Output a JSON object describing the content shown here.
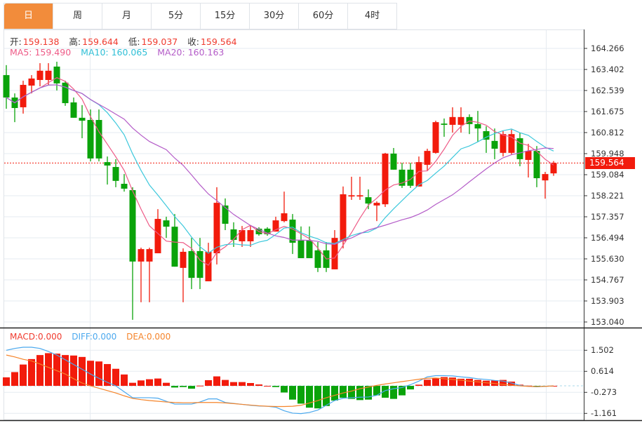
{
  "tabs": [
    {
      "label": "日",
      "active": true
    },
    {
      "label": "周"
    },
    {
      "label": "月"
    },
    {
      "label": "5分"
    },
    {
      "label": "15分"
    },
    {
      "label": "30分"
    },
    {
      "label": "60分"
    },
    {
      "label": "4时"
    }
  ],
  "ohlc_info": {
    "open_label": "开:",
    "open": "159.138",
    "high_label": "高:",
    "high": "159.644",
    "low_label": "低:",
    "low": "159.037",
    "close_label": "收:",
    "close": "159.564"
  },
  "ma_info": {
    "ma5": "MA5: 159.490",
    "ma10": "MA10: 160.065",
    "ma20": "MA20: 160.163"
  },
  "macd_info": {
    "macd": "MACD:0.000",
    "diff": "DIFF:0.000",
    "dea": "DEA:0.000"
  },
  "current_price": "159.564",
  "colors": {
    "up": "#f21b0c",
    "down": "#0aa30a",
    "ma5": "#ee5b87",
    "ma10": "#3cc8dc",
    "ma20": "#b45cc8",
    "diff": "#4aa8ee",
    "dea": "#f5842a",
    "active_tab": "#f28c3b"
  },
  "chart_data": [
    {
      "type": "candlestick",
      "price_axis_ticks": [
        "164.266",
        "163.402",
        "162.539",
        "161.675",
        "160.812",
        "159.948",
        "159.084",
        "158.221",
        "157.357",
        "156.494",
        "155.630",
        "154.767",
        "153.903",
        "153.040"
      ],
      "ylim": [
        153.04,
        164.266
      ],
      "grid": true,
      "ohlc": [
        [
          163.17,
          163.58,
          161.79,
          162.25
        ],
        [
          162.25,
          162.42,
          161.24,
          161.82
        ],
        [
          161.85,
          162.94,
          161.59,
          162.77
        ],
        [
          162.74,
          163.17,
          162.42,
          163.03
        ],
        [
          162.97,
          163.66,
          162.71,
          163.35
        ],
        [
          162.97,
          163.66,
          162.74,
          163.35
        ],
        [
          163.52,
          163.72,
          162.54,
          162.83
        ],
        [
          162.86,
          162.94,
          161.91,
          162.02
        ],
        [
          162.05,
          162.25,
          161.42,
          161.42
        ],
        [
          161.42,
          161.94,
          160.58,
          161.3
        ],
        [
          161.33,
          161.76,
          159.63,
          159.75
        ],
        [
          161.33,
          161.76,
          159.63,
          159.75
        ],
        [
          159.6,
          159.83,
          158.68,
          159.46
        ],
        [
          159.4,
          159.72,
          158.57,
          158.83
        ],
        [
          158.71,
          159.11,
          158.39,
          158.51
        ],
        [
          158.45,
          158.57,
          153.13,
          155.52
        ],
        [
          155.52,
          156.09,
          153.85,
          156.03
        ],
        [
          155.52,
          156.09,
          153.85,
          156.03
        ],
        [
          155.86,
          157.67,
          155.86,
          157.27
        ],
        [
          157.21,
          157.36,
          156.49,
          156.95
        ],
        [
          156.95,
          157.47,
          155.31,
          155.31
        ],
        [
          155.26,
          156.06,
          153.85,
          155.92
        ],
        [
          155.95,
          156.49,
          154.39,
          154.85
        ],
        [
          155.95,
          156.49,
          154.39,
          154.85
        ],
        [
          154.71,
          156.29,
          154.71,
          155.92
        ],
        [
          155.86,
          158.57,
          155.4,
          157.93
        ],
        [
          157.82,
          158.11,
          156.81,
          157.07
        ],
        [
          156.84,
          157.13,
          156.12,
          156.41
        ],
        [
          156.35,
          156.98,
          156.12,
          156.81
        ],
        [
          156.35,
          157.01,
          156.12,
          156.81
        ],
        [
          156.87,
          156.93,
          156.58,
          156.64
        ],
        [
          156.87,
          156.93,
          156.58,
          156.64
        ],
        [
          156.75,
          157.36,
          156.75,
          157.21
        ],
        [
          157.18,
          158.39,
          157.13,
          157.5
        ],
        [
          157.24,
          157.47,
          155.83,
          156.29
        ],
        [
          156.38,
          156.96,
          155.66,
          155.66
        ],
        [
          156.38,
          156.96,
          155.66,
          155.66
        ],
        [
          155.98,
          156.32,
          155.09,
          155.26
        ],
        [
          155.98,
          156.32,
          155.09,
          155.26
        ],
        [
          155.2,
          156.81,
          155.2,
          156.49
        ],
        [
          156.35,
          158.6,
          156.06,
          158.28
        ],
        [
          158.19,
          159.0,
          158.05,
          158.24
        ],
        [
          158.19,
          159.0,
          158.05,
          158.24
        ],
        [
          158.16,
          158.48,
          157.67,
          157.9
        ],
        [
          157.82,
          157.99,
          157.18,
          157.93
        ],
        [
          157.87,
          159.98,
          157.76,
          159.95
        ],
        [
          159.95,
          160.18,
          159.29,
          159.29
        ],
        [
          159.29,
          159.57,
          158.54,
          158.63
        ],
        [
          159.29,
          159.57,
          158.54,
          158.63
        ],
        [
          158.6,
          159.83,
          158.6,
          159.6
        ],
        [
          159.49,
          160.15,
          159.26,
          160.06
        ],
        [
          159.98,
          161.3,
          159.95,
          161.24
        ],
        [
          161.18,
          161.39,
          160.64,
          161.13
        ],
        [
          161.13,
          161.85,
          160.81,
          161.45
        ],
        [
          161.13,
          161.85,
          160.81,
          161.45
        ],
        [
          161.45,
          161.56,
          160.75,
          161.16
        ],
        [
          161.16,
          161.7,
          160.44,
          160.98
        ],
        [
          160.87,
          161.07,
          159.98,
          160.52
        ],
        [
          160.47,
          160.98,
          159.72,
          160.15
        ],
        [
          159.98,
          160.87,
          159.83,
          160.75
        ],
        [
          159.98,
          160.93,
          159.92,
          160.75
        ],
        [
          160.58,
          160.81,
          159.43,
          159.72
        ],
        [
          159.69,
          160.35,
          158.97,
          160.06
        ],
        [
          160.06,
          160.26,
          158.57,
          158.94
        ],
        [
          158.85,
          159.2,
          158.1,
          159.11
        ],
        [
          159.138,
          159.644,
          159.037,
          159.564
        ]
      ],
      "moving_averages": [
        "MA5",
        "MA10",
        "MA20"
      ]
    },
    {
      "type": "bar+line",
      "indicator": "MACD",
      "value_axis_ticks": [
        "1.502",
        "0.614",
        "-0.273",
        "-1.161"
      ],
      "ylim": [
        -1.161,
        1.502
      ],
      "histogram": [
        0.36,
        0.58,
        0.9,
        1.13,
        1.3,
        1.38,
        1.36,
        1.3,
        1.28,
        1.22,
        1.06,
        1.03,
        0.92,
        0.72,
        0.48,
        0.13,
        0.23,
        0.28,
        0.31,
        0.13,
        -0.07,
        -0.05,
        -0.12,
        0.01,
        0.24,
        0.4,
        0.25,
        0.16,
        0.16,
        0.12,
        0.06,
        0.0,
        -0.05,
        -0.28,
        -0.58,
        -0.75,
        -0.92,
        -0.95,
        -0.85,
        -0.62,
        -0.5,
        -0.55,
        -0.6,
        -0.58,
        -0.4,
        -0.5,
        -0.55,
        -0.4,
        -0.15,
        0.05,
        0.26,
        0.33,
        0.37,
        0.35,
        0.3,
        0.3,
        0.25,
        0.22,
        0.23,
        0.25,
        0.18,
        0.05,
        0.01,
        -0.04,
        -0.01,
        0.0
      ],
      "diff": [
        1.5,
        1.58,
        1.63,
        1.63,
        1.58,
        1.45,
        1.3,
        1.1,
        0.9,
        0.7,
        0.5,
        0.32,
        0.15,
        0.0,
        -0.25,
        -0.5,
        -0.5,
        -0.5,
        -0.52,
        -0.65,
        -0.77,
        -0.77,
        -0.77,
        -0.68,
        -0.55,
        -0.55,
        -0.7,
        -0.74,
        -0.78,
        -0.82,
        -0.85,
        -0.86,
        -0.9,
        -1.05,
        -1.15,
        -1.17,
        -1.12,
        -1.02,
        -0.82,
        -0.62,
        -0.52,
        -0.5,
        -0.48,
        -0.47,
        -0.4,
        -0.2,
        -0.12,
        -0.07,
        0.05,
        0.2,
        0.38,
        0.43,
        0.43,
        0.42,
        0.38,
        0.35,
        0.3,
        0.27,
        0.23,
        0.2,
        0.12,
        0.02,
        -0.02,
        -0.04,
        -0.02,
        0.0
      ],
      "dea": [
        1.3,
        1.22,
        1.12,
        1.05,
        0.92,
        0.78,
        0.64,
        0.5,
        0.3,
        0.12,
        0.0,
        -0.1,
        -0.2,
        -0.3,
        -0.42,
        -0.53,
        -0.58,
        -0.62,
        -0.65,
        -0.68,
        -0.7,
        -0.71,
        -0.71,
        -0.7,
        -0.7,
        -0.7,
        -0.72,
        -0.75,
        -0.78,
        -0.81,
        -0.84,
        -0.86,
        -0.87,
        -0.87,
        -0.86,
        -0.82,
        -0.72,
        -0.62,
        -0.5,
        -0.4,
        -0.3,
        -0.22,
        -0.12,
        -0.05,
        0.02,
        0.08,
        0.13,
        0.18,
        0.23,
        0.28,
        0.32,
        0.33,
        0.3,
        0.27,
        0.24,
        0.2,
        0.17,
        0.13,
        0.1,
        0.06,
        0.03,
        0.0,
        -0.02,
        -0.03,
        -0.02,
        0.0
      ]
    }
  ]
}
